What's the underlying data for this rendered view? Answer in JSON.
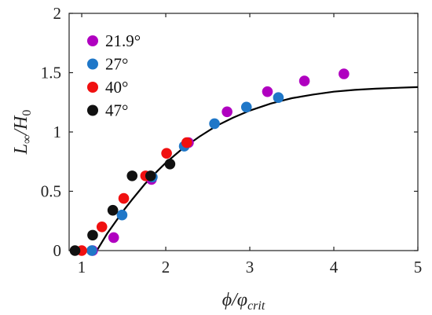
{
  "chart_data": {
    "type": "scatter",
    "xlim": [
      0.85,
      5
    ],
    "ylim": [
      0,
      2
    ],
    "x_ticks": [
      1,
      2,
      3,
      4,
      5
    ],
    "y_ticks": [
      0,
      0.5,
      1,
      1.5,
      2
    ],
    "x_tick_labels": [
      "1",
      "2",
      "3",
      "4",
      "5"
    ],
    "y_tick_labels": [
      "0",
      "0.5",
      "1",
      "1.5",
      "2"
    ],
    "xlabel": {
      "main": "ϕ/φ",
      "sub": "crit"
    },
    "ylabel": {
      "main": "L",
      "sub": "∞",
      "mid": "/H",
      "sub2": "0"
    },
    "grid": false,
    "legend_position": "top-left",
    "series": [
      {
        "name": "21.9°",
        "color": "#b000c0",
        "points": [
          [
            1.13,
            0.0
          ],
          [
            1.38,
            0.11
          ],
          [
            1.83,
            0.6
          ],
          [
            2.27,
            0.91
          ],
          [
            2.73,
            1.17
          ],
          [
            3.21,
            1.34
          ],
          [
            3.65,
            1.43
          ],
          [
            4.12,
            1.49
          ]
        ]
      },
      {
        "name": "27°",
        "color": "#1f77c8",
        "points": [
          [
            1.12,
            0.0
          ],
          [
            1.48,
            0.3
          ],
          [
            1.84,
            0.62
          ],
          [
            2.22,
            0.88
          ],
          [
            2.58,
            1.07
          ],
          [
            2.96,
            1.21
          ],
          [
            3.34,
            1.29
          ]
        ]
      },
      {
        "name": "40°",
        "color": "#f01010",
        "points": [
          [
            1.0,
            0.0
          ],
          [
            1.24,
            0.2
          ],
          [
            1.5,
            0.44
          ],
          [
            1.76,
            0.63
          ],
          [
            2.01,
            0.82
          ],
          [
            2.25,
            0.91
          ]
        ]
      },
      {
        "name": "47°",
        "color": "#111111",
        "points": [
          [
            0.92,
            0.0
          ],
          [
            1.13,
            0.13
          ],
          [
            1.37,
            0.34
          ],
          [
            1.6,
            0.63
          ],
          [
            1.82,
            0.63
          ],
          [
            2.05,
            0.73
          ]
        ]
      }
    ],
    "fit_curve": {
      "color": "#000000",
      "points": [
        [
          1.18,
          0.0
        ],
        [
          1.3,
          0.14
        ],
        [
          1.4,
          0.24
        ],
        [
          1.5,
          0.34
        ],
        [
          1.6,
          0.43
        ],
        [
          1.75,
          0.56
        ],
        [
          1.9,
          0.67
        ],
        [
          2.0,
          0.74
        ],
        [
          2.2,
          0.86
        ],
        [
          2.4,
          0.96
        ],
        [
          2.6,
          1.05
        ],
        [
          2.8,
          1.12
        ],
        [
          3.0,
          1.18
        ],
        [
          3.25,
          1.24
        ],
        [
          3.5,
          1.285
        ],
        [
          3.75,
          1.315
        ],
        [
          4.0,
          1.34
        ],
        [
          4.25,
          1.355
        ],
        [
          4.5,
          1.365
        ],
        [
          4.75,
          1.372
        ],
        [
          5.0,
          1.378
        ]
      ]
    }
  }
}
